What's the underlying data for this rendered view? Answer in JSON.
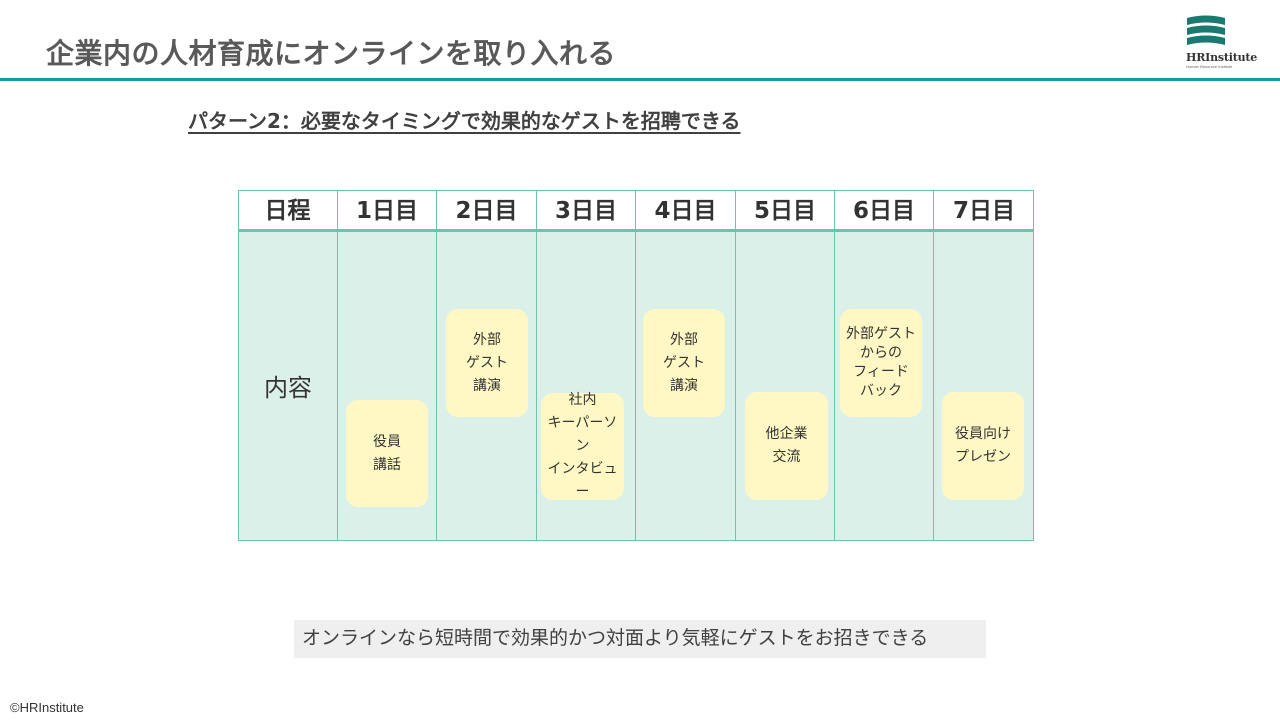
{
  "header": {
    "title": "企業内の人材育成にオンラインを取り入れる",
    "logo_text": "HRInstitute",
    "logo_subtext": "Human Resource Institute"
  },
  "subtitle": "パターン2：必要なタイミングで効果的なゲストを招聘できる",
  "table": {
    "columns": [
      "日程",
      "1日目",
      "2日目",
      "3日目",
      "4日目",
      "5日目",
      "6日目",
      "7日目"
    ],
    "row_label": "内容",
    "items": [
      {
        "day": "1日目",
        "text": "役員\n講話"
      },
      {
        "day": "2日目",
        "text": "外部\nゲスト\n講演"
      },
      {
        "day": "3日目",
        "text": "社内\nキーパーソン\nインタビュー"
      },
      {
        "day": "4日目",
        "text": "外部\nゲスト\n講演"
      },
      {
        "day": "5日目",
        "text": "他企業\n交流"
      },
      {
        "day": "6日目",
        "text": "外部ゲスト\nからの\nフィード\nバック"
      },
      {
        "day": "7日目",
        "text": "役員向け\nプレゼン"
      }
    ]
  },
  "footnote": "オンラインなら短時間で効果的かつ対面より気軽にゲストをお招きできる",
  "copyright": "©HRInstitute",
  "colors": {
    "accent": "#1a9aa8",
    "table_fill": "#dcf0ea",
    "table_border": "#6cc4ac",
    "card_fill": "#fff8c4",
    "footnote_fill": "#efefef"
  }
}
